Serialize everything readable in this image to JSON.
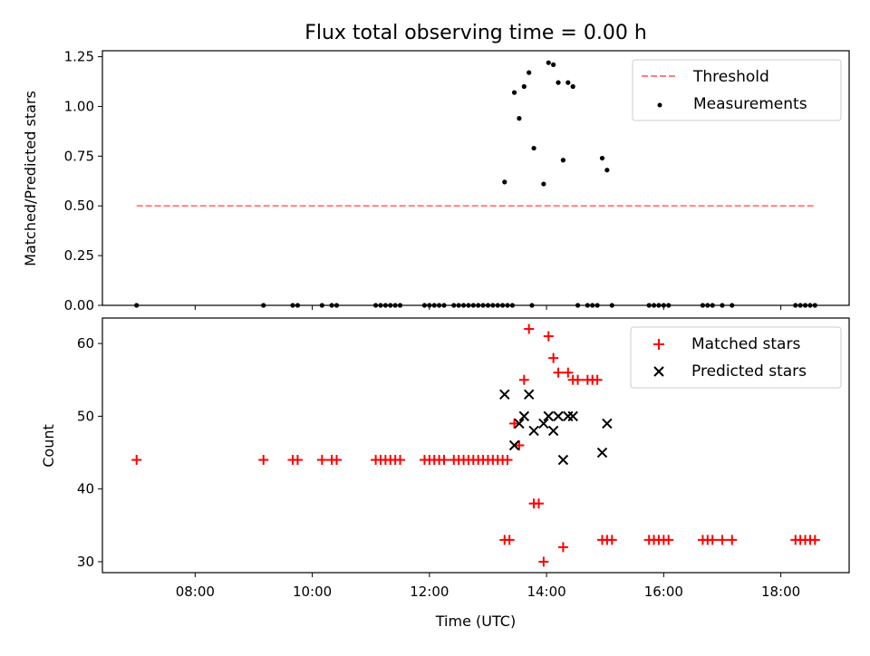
{
  "chart_data": [
    {
      "type": "scatter",
      "panel": "top",
      "title": "Flux total observing time = 0.00 h",
      "xlabel": "",
      "ylabel": "Matched/Predicted stars",
      "xlim": [
        "06:25",
        "19:10"
      ],
      "ylim": [
        0.0,
        1.28
      ],
      "yticks": [
        "0.00",
        "0.25",
        "0.50",
        "0.75",
        "1.00",
        "1.25"
      ],
      "legend_position": "top-right",
      "threshold": {
        "name": "Threshold",
        "value": 0.5,
        "x_range": [
          "07:00",
          "18:35"
        ],
        "color": "#ff7f7f",
        "style": "dashed"
      },
      "series": [
        {
          "name": "Measurements",
          "color": "#000000",
          "points": [
            [
              "07:00",
              0
            ],
            [
              "09:10",
              0
            ],
            [
              "09:40",
              0
            ],
            [
              "09:45",
              0
            ],
            [
              "10:10",
              0
            ],
            [
              "10:20",
              0
            ],
            [
              "10:25",
              0
            ],
            [
              "11:05",
              0
            ],
            [
              "11:10",
              0
            ],
            [
              "11:15",
              0
            ],
            [
              "11:20",
              0
            ],
            [
              "11:25",
              0
            ],
            [
              "11:30",
              0
            ],
            [
              "11:55",
              0
            ],
            [
              "12:00",
              0
            ],
            [
              "12:05",
              0
            ],
            [
              "12:10",
              0
            ],
            [
              "12:15",
              0
            ],
            [
              "12:25",
              0
            ],
            [
              "12:30",
              0
            ],
            [
              "12:35",
              0
            ],
            [
              "12:40",
              0
            ],
            [
              "12:45",
              0
            ],
            [
              "12:50",
              0
            ],
            [
              "12:55",
              0
            ],
            [
              "13:00",
              0
            ],
            [
              "13:05",
              0
            ],
            [
              "13:10",
              0
            ],
            [
              "13:15",
              0
            ],
            [
              "13:20",
              0
            ],
            [
              "13:25",
              0
            ],
            [
              "13:45",
              0
            ],
            [
              "13:17",
              0.62
            ],
            [
              "13:27",
              1.07
            ],
            [
              "13:32",
              0.94
            ],
            [
              "13:37",
              1.1
            ],
            [
              "13:42",
              1.17
            ],
            [
              "13:47",
              0.79
            ],
            [
              "13:57",
              0.61
            ],
            [
              "14:02",
              1.22
            ],
            [
              "14:07",
              1.21
            ],
            [
              "14:12",
              1.12
            ],
            [
              "14:17",
              0.73
            ],
            [
              "14:22",
              1.12
            ],
            [
              "14:27",
              1.1
            ],
            [
              "14:32",
              0
            ],
            [
              "14:42",
              0
            ],
            [
              "14:47",
              0
            ],
            [
              "14:52",
              0
            ],
            [
              "14:57",
              0.74
            ],
            [
              "15:02",
              0.68
            ],
            [
              "15:07",
              0
            ],
            [
              "15:45",
              0
            ],
            [
              "15:50",
              0
            ],
            [
              "15:55",
              0
            ],
            [
              "16:00",
              0
            ],
            [
              "16:05",
              0
            ],
            [
              "16:40",
              0
            ],
            [
              "16:45",
              0
            ],
            [
              "16:50",
              0
            ],
            [
              "17:00",
              0
            ],
            [
              "17:10",
              0
            ],
            [
              "18:15",
              0
            ],
            [
              "18:20",
              0
            ],
            [
              "18:25",
              0
            ],
            [
              "18:30",
              0
            ],
            [
              "18:35",
              0
            ]
          ]
        }
      ]
    },
    {
      "type": "scatter",
      "panel": "bottom",
      "title": "",
      "xlabel": "Time (UTC)",
      "ylabel": "Count",
      "xlim": [
        "06:25",
        "19:10"
      ],
      "ylim": [
        28.5,
        63.5
      ],
      "xticks": [
        "08:00",
        "10:00",
        "12:00",
        "14:00",
        "16:00",
        "18:00"
      ],
      "yticks": [
        "30",
        "40",
        "50",
        "60"
      ],
      "legend_position": "top-right",
      "series": [
        {
          "name": "Matched stars",
          "marker": "plus",
          "color": "#ff0000",
          "points": [
            [
              "07:00",
              44
            ],
            [
              "09:10",
              44
            ],
            [
              "09:40",
              44
            ],
            [
              "09:45",
              44
            ],
            [
              "10:10",
              44
            ],
            [
              "10:20",
              44
            ],
            [
              "10:25",
              44
            ],
            [
              "11:05",
              44
            ],
            [
              "11:10",
              44
            ],
            [
              "11:15",
              44
            ],
            [
              "11:20",
              44
            ],
            [
              "11:25",
              44
            ],
            [
              "11:30",
              44
            ],
            [
              "11:55",
              44
            ],
            [
              "12:00",
              44
            ],
            [
              "12:05",
              44
            ],
            [
              "12:10",
              44
            ],
            [
              "12:15",
              44
            ],
            [
              "12:25",
              44
            ],
            [
              "12:30",
              44
            ],
            [
              "12:35",
              44
            ],
            [
              "12:40",
              44
            ],
            [
              "12:45",
              44
            ],
            [
              "12:50",
              44
            ],
            [
              "12:55",
              44
            ],
            [
              "13:00",
              44
            ],
            [
              "13:05",
              44
            ],
            [
              "13:10",
              44
            ],
            [
              "13:15",
              44
            ],
            [
              "13:20",
              44
            ],
            [
              "13:17",
              33
            ],
            [
              "13:22",
              33
            ],
            [
              "13:27",
              49
            ],
            [
              "13:32",
              46
            ],
            [
              "13:37",
              55
            ],
            [
              "13:42",
              62
            ],
            [
              "13:47",
              38
            ],
            [
              "13:52",
              38
            ],
            [
              "13:57",
              30
            ],
            [
              "14:02",
              61
            ],
            [
              "14:07",
              58
            ],
            [
              "14:12",
              56
            ],
            [
              "14:17",
              32
            ],
            [
              "14:22",
              56
            ],
            [
              "14:27",
              55
            ],
            [
              "14:32",
              55
            ],
            [
              "14:42",
              55
            ],
            [
              "14:47",
              55
            ],
            [
              "14:52",
              55
            ],
            [
              "14:57",
              33
            ],
            [
              "15:02",
              33
            ],
            [
              "15:07",
              33
            ],
            [
              "15:45",
              33
            ],
            [
              "15:50",
              33
            ],
            [
              "15:55",
              33
            ],
            [
              "16:00",
              33
            ],
            [
              "16:05",
              33
            ],
            [
              "16:40",
              33
            ],
            [
              "16:45",
              33
            ],
            [
              "16:50",
              33
            ],
            [
              "17:00",
              33
            ],
            [
              "17:10",
              33
            ],
            [
              "18:15",
              33
            ],
            [
              "18:20",
              33
            ],
            [
              "18:25",
              33
            ],
            [
              "18:30",
              33
            ],
            [
              "18:35",
              33
            ]
          ]
        },
        {
          "name": "Predicted stars",
          "marker": "x",
          "color": "#000000",
          "points": [
            [
              "13:17",
              53
            ],
            [
              "13:27",
              46
            ],
            [
              "13:32",
              49
            ],
            [
              "13:37",
              50
            ],
            [
              "13:42",
              53
            ],
            [
              "13:47",
              48
            ],
            [
              "13:57",
              49
            ],
            [
              "14:02",
              50
            ],
            [
              "14:07",
              48
            ],
            [
              "14:12",
              50
            ],
            [
              "14:17",
              44
            ],
            [
              "14:22",
              50
            ],
            [
              "14:27",
              50
            ],
            [
              "14:57",
              45
            ],
            [
              "15:02",
              49
            ]
          ]
        }
      ]
    }
  ]
}
